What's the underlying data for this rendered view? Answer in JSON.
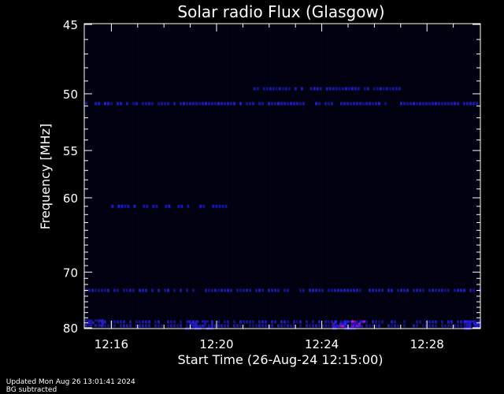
{
  "chart_data": {
    "type": "heatmap",
    "title": "Solar radio Flux (Glasgow)",
    "xlabel": "Start Time (26-Aug-24 12:15:00)",
    "ylabel": "Frequency [MHz]",
    "x_ticks": [
      "12:16",
      "12:20",
      "12:24",
      "12:28"
    ],
    "x_tick_minutes": [
      1,
      5,
      9,
      13
    ],
    "xlim_minutes": [
      0,
      15
    ],
    "y_ticks": [
      45,
      50,
      55,
      60,
      70,
      80
    ],
    "ylim": [
      45,
      80
    ],
    "y_scale": "reciprocal",
    "features": [
      {
        "kind": "band",
        "freq": 50.8,
        "t": [
          0,
          15
        ],
        "intensity": 0.7
      },
      {
        "kind": "band",
        "freq": 49.6,
        "t": [
          6.4,
          12
        ],
        "intensity": 0.6
      },
      {
        "kind": "band",
        "freq": 61.0,
        "t": [
          1,
          5.4
        ],
        "intensity": 0.85
      },
      {
        "kind": "band",
        "freq": 73.0,
        "t": [
          0,
          15
        ],
        "intensity": 0.55
      },
      {
        "kind": "band",
        "freq": 78.8,
        "t": [
          0,
          15
        ],
        "intensity": 0.45
      },
      {
        "kind": "band",
        "freq": 79.6,
        "t": [
          0,
          15
        ],
        "intensity": 0.35
      },
      {
        "kind": "patch",
        "freq": [
          78.5,
          80
        ],
        "t": [
          9.4,
          10.6
        ],
        "intensity": 1.0
      },
      {
        "kind": "patch",
        "freq": [
          78.5,
          80
        ],
        "t": [
          3.8,
          4.8
        ],
        "intensity": 0.8
      },
      {
        "kind": "patch",
        "freq": [
          78.5,
          80
        ],
        "t": [
          14.4,
          15
        ],
        "intensity": 0.85
      },
      {
        "kind": "patch",
        "freq": [
          78.3,
          79.5
        ],
        "t": [
          0,
          0.8
        ],
        "intensity": 0.6
      }
    ]
  },
  "footer": {
    "updated": "Updated Mon Aug 26 13:01:41 2024",
    "note": "BG subtracted"
  }
}
